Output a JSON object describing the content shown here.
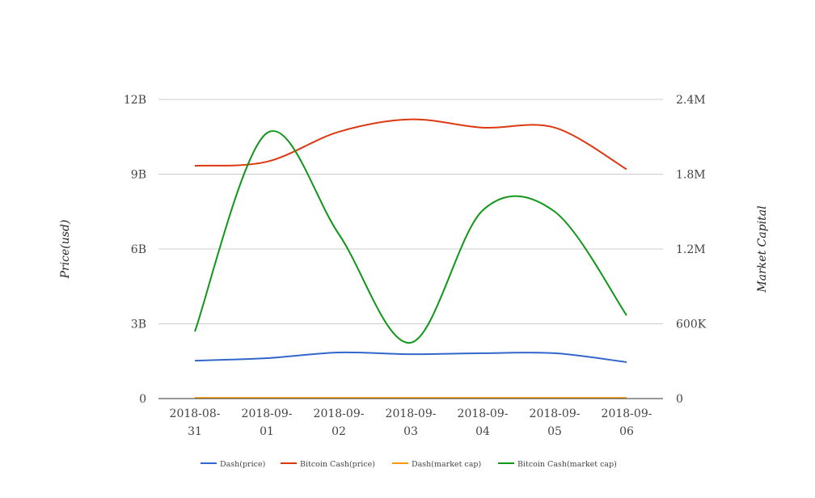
{
  "chart_data": {
    "type": "line",
    "title": "",
    "x": [
      "2018-08-31",
      "2018-09-01",
      "2018-09-02",
      "2018-09-03",
      "2018-09-04",
      "2018-09-05",
      "2018-09-06"
    ],
    "x_tick_lines": [
      [
        "2018-08-",
        "31"
      ],
      [
        "2018-09-",
        "01"
      ],
      [
        "2018-09-",
        "02"
      ],
      [
        "2018-09-",
        "03"
      ],
      [
        "2018-09-",
        "04"
      ],
      [
        "2018-09-",
        "05"
      ],
      [
        "2018-09-",
        "06"
      ]
    ],
    "ylabel": "Price(usd)",
    "y2label": "Market Capital",
    "ylim": [
      0,
      12000000000
    ],
    "y2lim": [
      0,
      2400000
    ],
    "yticks": [
      0,
      3000000000,
      6000000000,
      9000000000,
      12000000000
    ],
    "ytick_labels": [
      "0",
      "3B",
      "6B",
      "9B",
      "12B"
    ],
    "y2ticks": [
      0,
      600000,
      1200000,
      1800000,
      2400000
    ],
    "y2tick_labels": [
      "0",
      "600K",
      "1.2M",
      "1.8M",
      "2.4M"
    ],
    "grid": true,
    "legend_position": "bottom",
    "series": [
      {
        "name": "Dash(price)",
        "axis": "left",
        "color": "#3366cc",
        "values": [
          1520000000,
          1620000000,
          1850000000,
          1780000000,
          1820000000,
          1820000000,
          1460000000
        ]
      },
      {
        "name": "Bitcoin Cash(price)",
        "axis": "left",
        "color": "#dc3912",
        "values": [
          9340000000,
          9500000000,
          10700000000,
          11200000000,
          10870000000,
          10870000000,
          9200000000
        ]
      },
      {
        "name": "Dash(market cap)",
        "axis": "right",
        "color": "#ff9900",
        "values": [
          5000,
          5000,
          5000,
          5000,
          5000,
          5000,
          5000
        ]
      },
      {
        "name": "Bitcoin Cash(market cap)",
        "axis": "right",
        "color": "#109618",
        "values": [
          538000,
          2130000,
          1320000,
          448000,
          1510000,
          1500000,
          668000
        ]
      }
    ]
  }
}
